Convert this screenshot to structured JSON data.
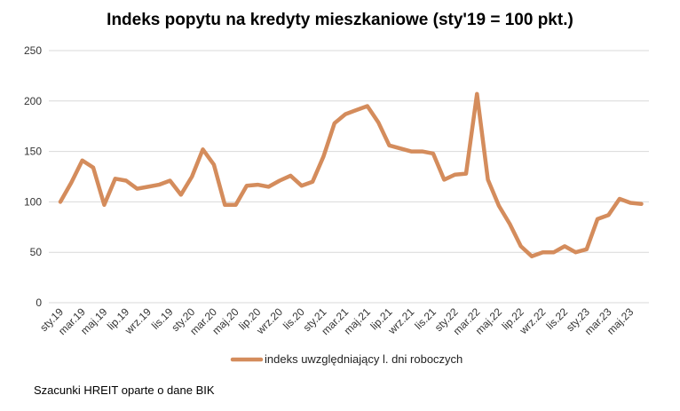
{
  "chart_data": {
    "type": "line",
    "title": "Indeks popytu na kredyty mieszkaniowe (sty'19 = 100 pkt.)",
    "xlabel": "",
    "ylabel": "",
    "ylim": [
      0,
      250
    ],
    "yticks": [
      0,
      50,
      100,
      150,
      200,
      250
    ],
    "grid": true,
    "legend_position": "bottom",
    "x": [
      "sty.19",
      "lut.19",
      "mar.19",
      "kwi.19",
      "maj.19",
      "cze.19",
      "lip.19",
      "sie.19",
      "wrz.19",
      "paź.19",
      "lis.19",
      "gru.19",
      "sty.20",
      "lut.20",
      "mar.20",
      "kwi.20",
      "maj.20",
      "cze.20",
      "lip.20",
      "sie.20",
      "wrz.20",
      "paź.20",
      "lis.20",
      "gru.20",
      "sty.21",
      "lut.21",
      "mar.21",
      "kwi.21",
      "maj.21",
      "cze.21",
      "lip.21",
      "sie.21",
      "wrz.21",
      "paź.21",
      "lis.21",
      "gru.21",
      "sty.22",
      "lut.22",
      "mar.22",
      "kwi.22",
      "maj.22",
      "cze.22",
      "lip.22",
      "sie.22",
      "wrz.22",
      "paź.22",
      "lis.22",
      "gru.22",
      "sty.23",
      "lut.23",
      "mar.23",
      "kwi.23",
      "maj.23",
      "cze.23"
    ],
    "tick_labels": [
      "sty.19",
      "mar.19",
      "maj.19",
      "lip.19",
      "wrz.19",
      "lis.19",
      "sty.20",
      "mar.20",
      "maj.20",
      "lip.20",
      "wrz.20",
      "lis.20",
      "sty.21",
      "mar.21",
      "maj.21",
      "lip.21",
      "wrz.21",
      "lis.21",
      "sty.22",
      "mar.22",
      "maj.22",
      "lip.22",
      "wrz.22",
      "lis.22",
      "sty.23",
      "mar.23",
      "maj.23"
    ],
    "series": [
      {
        "name": "indeks uwzględniający l. dni roboczych",
        "color": "#D48C5C",
        "values": [
          100,
          119,
          141,
          134,
          97,
          123,
          121,
          113,
          115,
          117,
          121,
          107,
          125,
          152,
          137,
          97,
          97,
          116,
          117,
          115,
          121,
          126,
          116,
          120,
          145,
          178,
          187,
          191,
          195,
          179,
          156,
          153,
          150,
          150,
          148,
          122,
          127,
          128,
          207,
          122,
          96,
          78,
          56,
          46,
          50,
          50,
          56,
          50,
          53,
          83,
          87,
          103,
          99,
          98
        ]
      }
    ]
  },
  "footer": {
    "source": "Szacunki HREIT oparte o dane BIK"
  }
}
